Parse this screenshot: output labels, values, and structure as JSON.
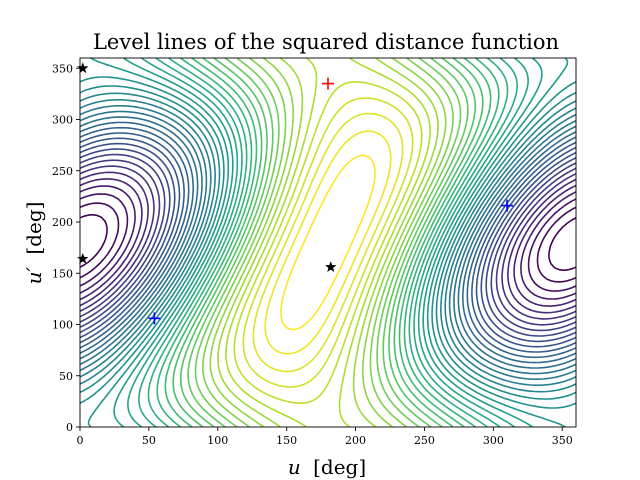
{
  "chart_data": {
    "type": "contour",
    "title": "Level lines of the squared distance function",
    "xlabel_var": "u",
    "xlabel_unit": "[deg]",
    "ylabel_var": "u′",
    "ylabel_unit": "[deg]",
    "xlim": [
      0,
      360
    ],
    "ylim": [
      0,
      360
    ],
    "xticks": [
      0,
      50,
      100,
      150,
      200,
      250,
      300,
      350
    ],
    "yticks": [
      0,
      50,
      100,
      150,
      200,
      250,
      300,
      350
    ],
    "colormap": "viridis",
    "grid": false,
    "maxima": [
      {
        "u": 180,
        "u_prime": 335,
        "marker": "plus",
        "color": "#ff0000"
      }
    ],
    "saddles": [
      {
        "u": 182,
        "u_prime": 156,
        "marker": "star",
        "color": "#000000"
      },
      {
        "u": 2,
        "u_prime": 350,
        "marker": "star",
        "color": "#000000"
      },
      {
        "u": 2,
        "u_prime": 164,
        "marker": "star",
        "color": "#000000"
      }
    ],
    "minima": [
      {
        "u": 54,
        "u_prime": 106,
        "marker": "plus",
        "color": "#0000ff"
      },
      {
        "u": 310,
        "u_prime": 216,
        "marker": "plus",
        "color": "#0000ff"
      }
    ]
  }
}
